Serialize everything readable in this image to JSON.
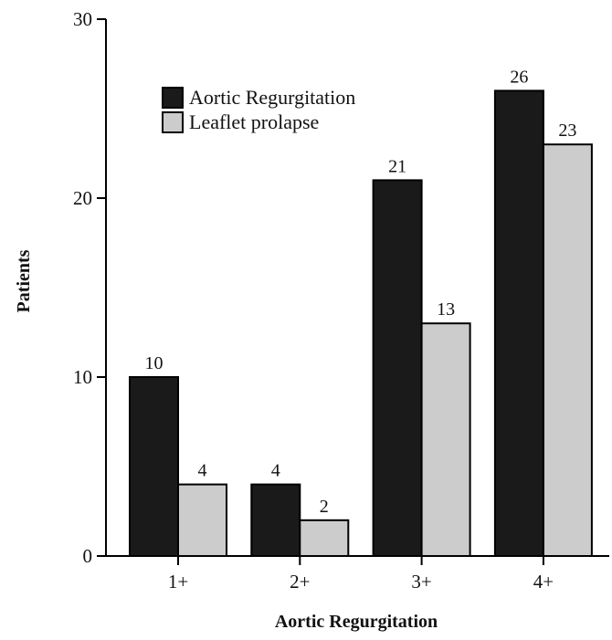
{
  "chart_data": {
    "type": "bar",
    "categories": [
      "1+",
      "2+",
      "3+",
      "4+"
    ],
    "series": [
      {
        "name": "Aortic Regurgitation",
        "values": [
          10,
          4,
          21,
          26
        ],
        "color": "#1a1a1a"
      },
      {
        "name": "Leaflet prolapse",
        "values": [
          4,
          2,
          13,
          23
        ],
        "color": "#cccccc"
      }
    ],
    "title": "",
    "xlabel": "Aortic Regurgitation",
    "ylabel": "Patients",
    "ylim": [
      0,
      30
    ],
    "yticks": [
      0,
      10,
      20,
      30
    ],
    "grid": false,
    "legend": "top-left"
  },
  "colors": {
    "bar_outline": "#000000",
    "axis": "#000000"
  }
}
